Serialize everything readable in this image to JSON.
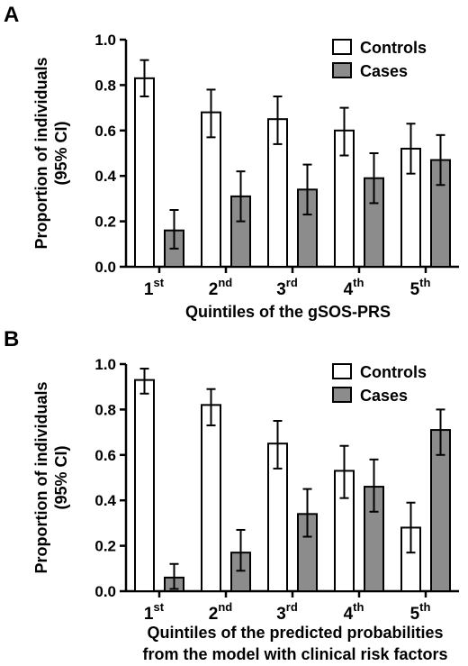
{
  "chart_data": [
    {
      "type": "bar",
      "panel": "A",
      "ylabel_lines": [
        "Proportion of individuals",
        "(95% CI)"
      ],
      "xlabel_lines": [
        "Quintiles of the gSOS-PRS"
      ],
      "categories": [
        {
          "base": "1",
          "sup": "st"
        },
        {
          "base": "2",
          "sup": "nd"
        },
        {
          "base": "3",
          "sup": "rd"
        },
        {
          "base": "4",
          "sup": "th"
        },
        {
          "base": "5",
          "sup": "th"
        }
      ],
      "ylim": [
        0,
        1.0
      ],
      "yticks": [
        "0.0",
        "0.2",
        "0.4",
        "0.6",
        "0.8",
        "1.0"
      ],
      "legend_position": "top-right",
      "series": [
        {
          "name": "Controls",
          "color": "#ffffff",
          "values": [
            0.83,
            0.68,
            0.65,
            0.6,
            0.52
          ],
          "ci_low": [
            0.75,
            0.57,
            0.54,
            0.49,
            0.41
          ],
          "ci_high": [
            0.91,
            0.78,
            0.75,
            0.7,
            0.63
          ]
        },
        {
          "name": "Cases",
          "color": "#8c8c8c",
          "values": [
            0.16,
            0.31,
            0.34,
            0.39,
            0.47
          ],
          "ci_low": [
            0.08,
            0.2,
            0.23,
            0.28,
            0.36
          ],
          "ci_high": [
            0.25,
            0.42,
            0.45,
            0.5,
            0.58
          ]
        }
      ]
    },
    {
      "type": "bar",
      "panel": "B",
      "ylabel_lines": [
        "Proportion of individuals",
        "(95% CI)"
      ],
      "xlabel_lines": [
        "Quintiles of the predicted probabilities",
        "from the model with clinical risk factors"
      ],
      "categories": [
        {
          "base": "1",
          "sup": "st"
        },
        {
          "base": "2",
          "sup": "nd"
        },
        {
          "base": "3",
          "sup": "rd"
        },
        {
          "base": "4",
          "sup": "th"
        },
        {
          "base": "5",
          "sup": "th"
        }
      ],
      "ylim": [
        0,
        1.0
      ],
      "yticks": [
        "0.0",
        "0.2",
        "0.4",
        "0.6",
        "0.8",
        "1.0"
      ],
      "legend_position": "top-right",
      "series": [
        {
          "name": "Controls",
          "color": "#ffffff",
          "values": [
            0.93,
            0.82,
            0.65,
            0.53,
            0.28
          ],
          "ci_low": [
            0.87,
            0.73,
            0.54,
            0.41,
            0.17
          ],
          "ci_high": [
            0.98,
            0.89,
            0.75,
            0.64,
            0.39
          ]
        },
        {
          "name": "Cases",
          "color": "#8c8c8c",
          "values": [
            0.06,
            0.17,
            0.34,
            0.46,
            0.71
          ],
          "ci_low": [
            0.01,
            0.09,
            0.24,
            0.35,
            0.6
          ],
          "ci_high": [
            0.12,
            0.27,
            0.45,
            0.58,
            0.8
          ]
        }
      ]
    }
  ]
}
